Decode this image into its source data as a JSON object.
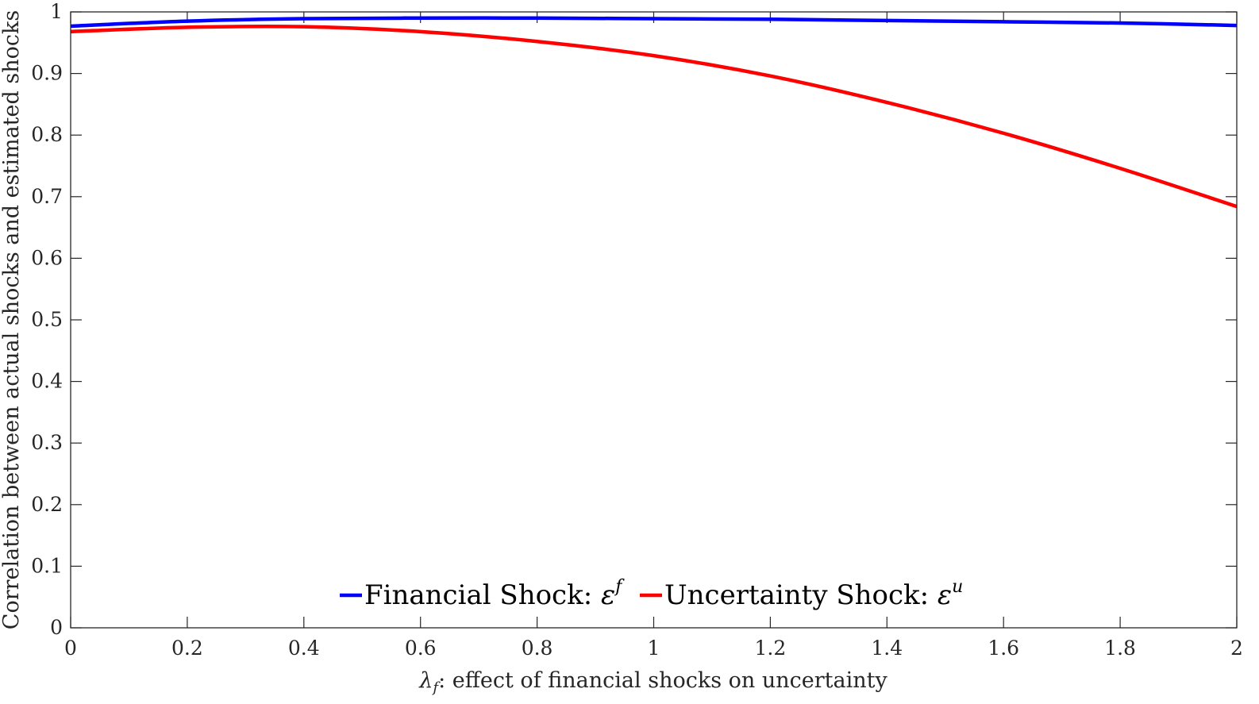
{
  "chart_data": {
    "type": "line",
    "xlabel_prefix": "λ",
    "xlabel_subscript": "f",
    "xlabel_rest": ": effect of financial shocks on uncertainty",
    "ylabel": "Correlation between actual shocks and estimated shocks",
    "xlim": [
      0,
      2
    ],
    "ylim": [
      0,
      1
    ],
    "x_ticks": [
      "0",
      "0.2",
      "0.4",
      "0.6",
      "0.8",
      "1",
      "1.2",
      "1.4",
      "1.6",
      "1.8",
      "2"
    ],
    "y_ticks": [
      "0",
      "0.1",
      "0.2",
      "0.3",
      "0.4",
      "0.5",
      "0.6",
      "0.7",
      "0.8",
      "0.9",
      "1"
    ],
    "grid": false,
    "legend_position": "bottom-center",
    "x": [
      0,
      0.2,
      0.4,
      0.6,
      0.8,
      1.0,
      1.2,
      1.4,
      1.6,
      1.8,
      2.0
    ],
    "series": [
      {
        "name": "Financial Shock: ",
        "symbol": "ε",
        "superscript": "f",
        "color": "#0000ff",
        "values": [
          0.977,
          0.985,
          0.989,
          0.99,
          0.99,
          0.989,
          0.988,
          0.986,
          0.984,
          0.982,
          0.978
        ]
      },
      {
        "name": "Uncertainty Shock: ",
        "symbol": "ε",
        "superscript": "u",
        "color": "#ff0000",
        "values": [
          0.968,
          0.975,
          0.976,
          0.968,
          0.952,
          0.929,
          0.896,
          0.853,
          0.803,
          0.746,
          0.684
        ]
      }
    ]
  }
}
